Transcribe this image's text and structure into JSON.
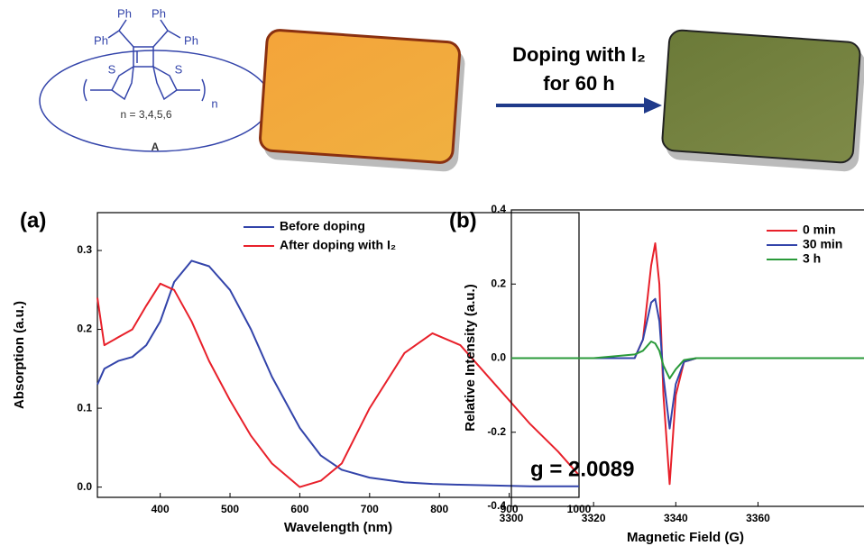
{
  "scheme": {
    "structure_labels": [
      "Ph",
      "Ph",
      "Ph",
      "Ph",
      "S",
      "S",
      "n",
      "n = 3,4,5,6",
      "A"
    ],
    "arrow_text": [
      "Doping with I₂",
      "for 60 h"
    ]
  },
  "chart_data": [
    {
      "type": "line",
      "panel_label": "(a)",
      "x_label": "Wavelength (nm)",
      "y_label": "Absorption (a.u.)",
      "x": [
        310,
        320,
        340,
        360,
        380,
        400,
        420,
        445,
        470,
        500,
        530,
        560,
        600,
        630,
        660,
        700,
        750,
        790,
        830,
        880,
        930,
        970,
        1000
      ],
      "series": [
        {
          "name": "Before doping",
          "color": "#3344aa",
          "values": [
            0.13,
            0.15,
            0.16,
            0.165,
            0.18,
            0.21,
            0.26,
            0.287,
            0.28,
            0.25,
            0.2,
            0.14,
            0.075,
            0.04,
            0.022,
            0.012,
            0.006,
            0.004,
            0.003,
            0.002,
            0.001,
            0.001,
            0.001
          ]
        },
        {
          "name": "After doping with I₂",
          "color": "#e8202a",
          "values": [
            0.24,
            0.18,
            0.19,
            0.2,
            0.23,
            0.258,
            0.25,
            0.21,
            0.16,
            0.11,
            0.065,
            0.03,
            0.0,
            0.008,
            0.03,
            0.1,
            0.17,
            0.195,
            0.18,
            0.13,
            0.08,
            0.045,
            0.015
          ]
        }
      ],
      "xlim": [
        310,
        1000
      ],
      "ylim": [
        -0.013,
        0.348
      ],
      "xticks": [
        400,
        500,
        600,
        700,
        800,
        900,
        1000
      ],
      "yticks": [
        {
          "value": 0,
          "label": "0.0"
        },
        0.1,
        0.2,
        0.3
      ]
    },
    {
      "type": "line",
      "panel_label": "(b)",
      "x_label": "Magnetic Field (G)",
      "y_label": "Relative Intensity (a.u.)",
      "annotation": "g = 2.0089",
      "x": [
        3300,
        3320,
        3330,
        3332,
        3334,
        3335,
        3336,
        3337,
        3338.5,
        3340,
        3342,
        3345,
        3360,
        3395
      ],
      "series": [
        {
          "name": "0 min",
          "color": "#e8202a",
          "values": [
            0,
            0,
            0,
            0.05,
            0.25,
            0.31,
            0.2,
            -0.1,
            -0.34,
            -0.1,
            -0.01,
            0,
            0,
            0
          ]
        },
        {
          "name": "30 min",
          "color": "#3344aa",
          "values": [
            0,
            0,
            0,
            0.05,
            0.15,
            0.16,
            0.1,
            -0.05,
            -0.19,
            -0.07,
            -0.01,
            0,
            0,
            0
          ]
        },
        {
          "name": "3 h",
          "color": "#2a9a3a",
          "values": [
            0,
            0,
            0.01,
            0.02,
            0.045,
            0.04,
            0.02,
            -0.02,
            -0.055,
            -0.03,
            -0.005,
            0,
            0,
            0
          ]
        }
      ],
      "xlim": [
        3300,
        3395
      ],
      "ylim": [
        -0.4,
        0.4
      ],
      "xticks": [
        3300,
        3320,
        3340,
        3360
      ],
      "yticks": [
        -0.4,
        -0.2,
        {
          "value": 0,
          "label": "0.0"
        },
        0.2,
        0.4
      ]
    }
  ]
}
